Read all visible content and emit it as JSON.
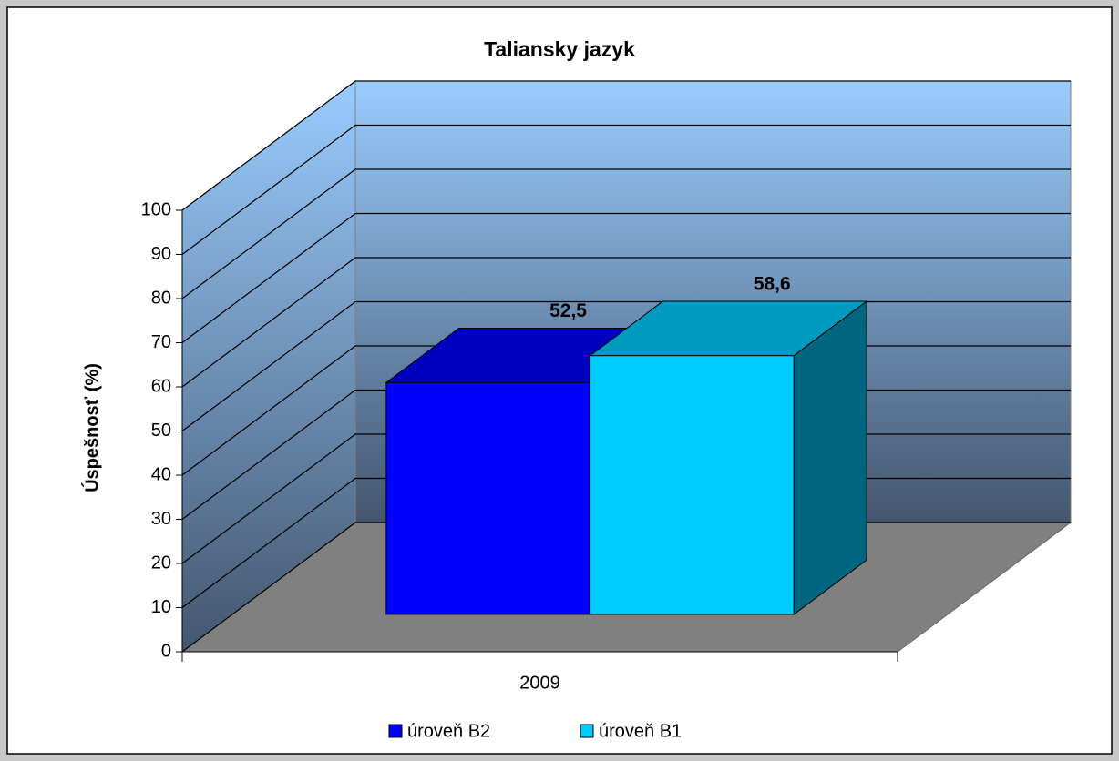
{
  "chart_data": {
    "type": "bar3d",
    "title": "Taliansky jazyk",
    "y_label": "Úspešnosť (%)",
    "categories": [
      "2009"
    ],
    "series": [
      {
        "name": "úroveň B2",
        "color": "#0000ff",
        "values": [
          52.5
        ],
        "value_labels": [
          "52,5"
        ]
      },
      {
        "name": "úroveň B1",
        "color": "#00ccff",
        "values": [
          58.6
        ],
        "value_labels": [
          "58,6"
        ]
      }
    ],
    "ylim": [
      0,
      100
    ],
    "yticks": [
      0,
      10,
      20,
      30,
      40,
      50,
      60,
      70,
      80,
      90,
      100
    ],
    "grid": true,
    "legend": "bottom"
  }
}
